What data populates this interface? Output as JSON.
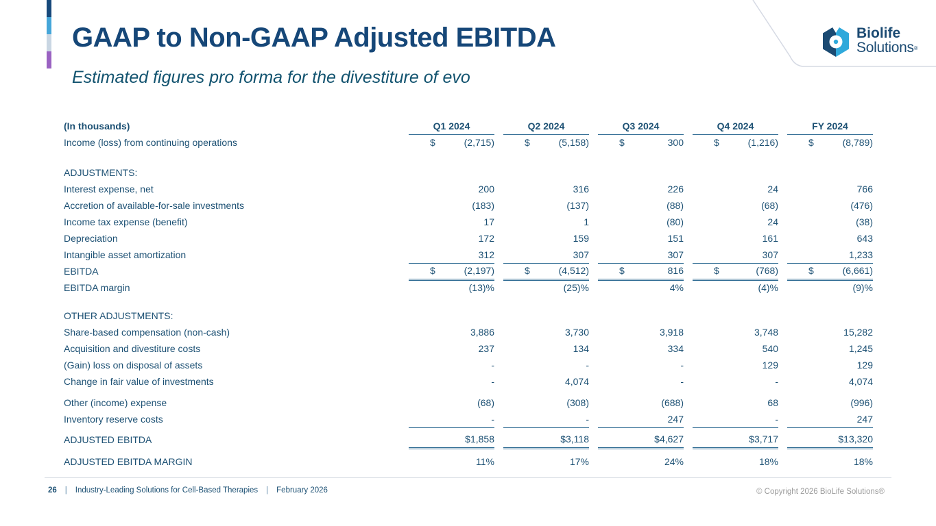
{
  "slide": {
    "title": "GAAP to Non-GAAP Adjusted EBITDA",
    "subtitle": "Estimated figures pro forma for the divestiture of evo"
  },
  "logo": {
    "line1": "Biolife",
    "line2": "Solutions",
    "reg": "®"
  },
  "table": {
    "label_header": "(In thousands)",
    "currency_symbol": "$",
    "columns": [
      "Q1 2024",
      "Q2 2024",
      "Q3 2024",
      "Q4 2024",
      "FY 2024"
    ],
    "rows": [
      {
        "type": "data",
        "label": "Income (loss) from continuing operations",
        "dollar": true,
        "values": [
          "(2,715)",
          "(5,158)",
          "300",
          "(1,216)",
          "(8,789)"
        ],
        "underline": "none"
      },
      {
        "type": "spacer",
        "height": 20
      },
      {
        "type": "section",
        "label": "ADJUSTMENTS:"
      },
      {
        "type": "data",
        "label": "Interest expense, net",
        "values": [
          "200",
          "316",
          "226",
          "24",
          "766"
        ],
        "underline": "none"
      },
      {
        "type": "data",
        "label": "Accretion of available-for-sale investments",
        "values": [
          "(183)",
          "(137)",
          "(88)",
          "(68)",
          "(476)"
        ],
        "underline": "none"
      },
      {
        "type": "data",
        "label": "Income tax expense (benefit)",
        "values": [
          "17",
          "1",
          "(80)",
          "24",
          "(38)"
        ],
        "underline": "none"
      },
      {
        "type": "data",
        "label": "Depreciation",
        "values": [
          "172",
          "159",
          "151",
          "161",
          "643"
        ],
        "underline": "none"
      },
      {
        "type": "data",
        "label": "Intangible asset amortization",
        "values": [
          "312",
          "307",
          "307",
          "307",
          "1,233"
        ],
        "underline": "single"
      },
      {
        "type": "data",
        "label": "EBITDA",
        "dollar": true,
        "values": [
          "(2,197)",
          "(4,512)",
          "816",
          "(768)",
          "(6,661)"
        ],
        "underline": "double"
      },
      {
        "type": "data",
        "label": "EBITDA margin",
        "values": [
          "(13)%",
          "(25)%",
          "4%",
          "(4)%",
          "(9)%"
        ],
        "underline": "none"
      },
      {
        "type": "spacer",
        "height": 17
      },
      {
        "type": "section",
        "label": "OTHER ADJUSTMENTS:"
      },
      {
        "type": "data",
        "label": "Share-based compensation (non-cash)",
        "values": [
          "3,886",
          "3,730",
          "3,918",
          "3,748",
          "15,282"
        ],
        "underline": "none"
      },
      {
        "type": "data",
        "label": "Acquisition and divestiture costs",
        "values": [
          "237",
          "134",
          "334",
          "540",
          "1,245"
        ],
        "underline": "none"
      },
      {
        "type": "data",
        "label": "(Gain) loss on disposal of assets",
        "values": [
          "-",
          "-",
          "-",
          "129",
          "129"
        ],
        "underline": "none"
      },
      {
        "type": "data",
        "label": "Change in fair value of investments",
        "values": [
          "-",
          "4,074",
          "-",
          "-",
          "4,074"
        ],
        "underline": "none"
      },
      {
        "type": "spacer",
        "height": 7
      },
      {
        "type": "data",
        "label": "Other (income) expense",
        "values": [
          "(68)",
          "(308)",
          "(688)",
          "68",
          "(996)"
        ],
        "underline": "none"
      },
      {
        "type": "data",
        "label": "Inventory reserve costs",
        "values": [
          "-",
          "-",
          "247",
          "-",
          "247"
        ],
        "underline": "single"
      },
      {
        "type": "spacer",
        "height": 6
      },
      {
        "type": "data",
        "label": "ADJUSTED EBITDA",
        "values": [
          "$1,858",
          "$3,118",
          "$4,627",
          "$3,717",
          "$13,320"
        ],
        "underline": "double"
      },
      {
        "type": "spacer",
        "height": 8
      },
      {
        "type": "data",
        "label": "ADJUSTED EBITDA MARGIN",
        "values": [
          "11%",
          "17%",
          "24%",
          "18%",
          "18%"
        ],
        "underline": "none"
      }
    ]
  },
  "footer": {
    "page_number": "26",
    "separator": "|",
    "tagline": "Industry-Leading Solutions for Cell-Based Therapies",
    "date": "February 2026",
    "copyright": "© Copyright 2026 BioLife Solutions®"
  },
  "colors": {
    "title": "#164778",
    "subtitle": "#12536f",
    "text": "#1d5174",
    "rule": "#336e95",
    "accent_segments": [
      "#17497b",
      "#45a6d9",
      "#c9d6e3",
      "#9a62c2"
    ],
    "logo_navy": "#1b4a72",
    "logo_cyan": "#2fa9db",
    "copyright_gray": "#9b9b9b",
    "panel_line": "#d6dae4",
    "divider": "#dadfe5"
  }
}
